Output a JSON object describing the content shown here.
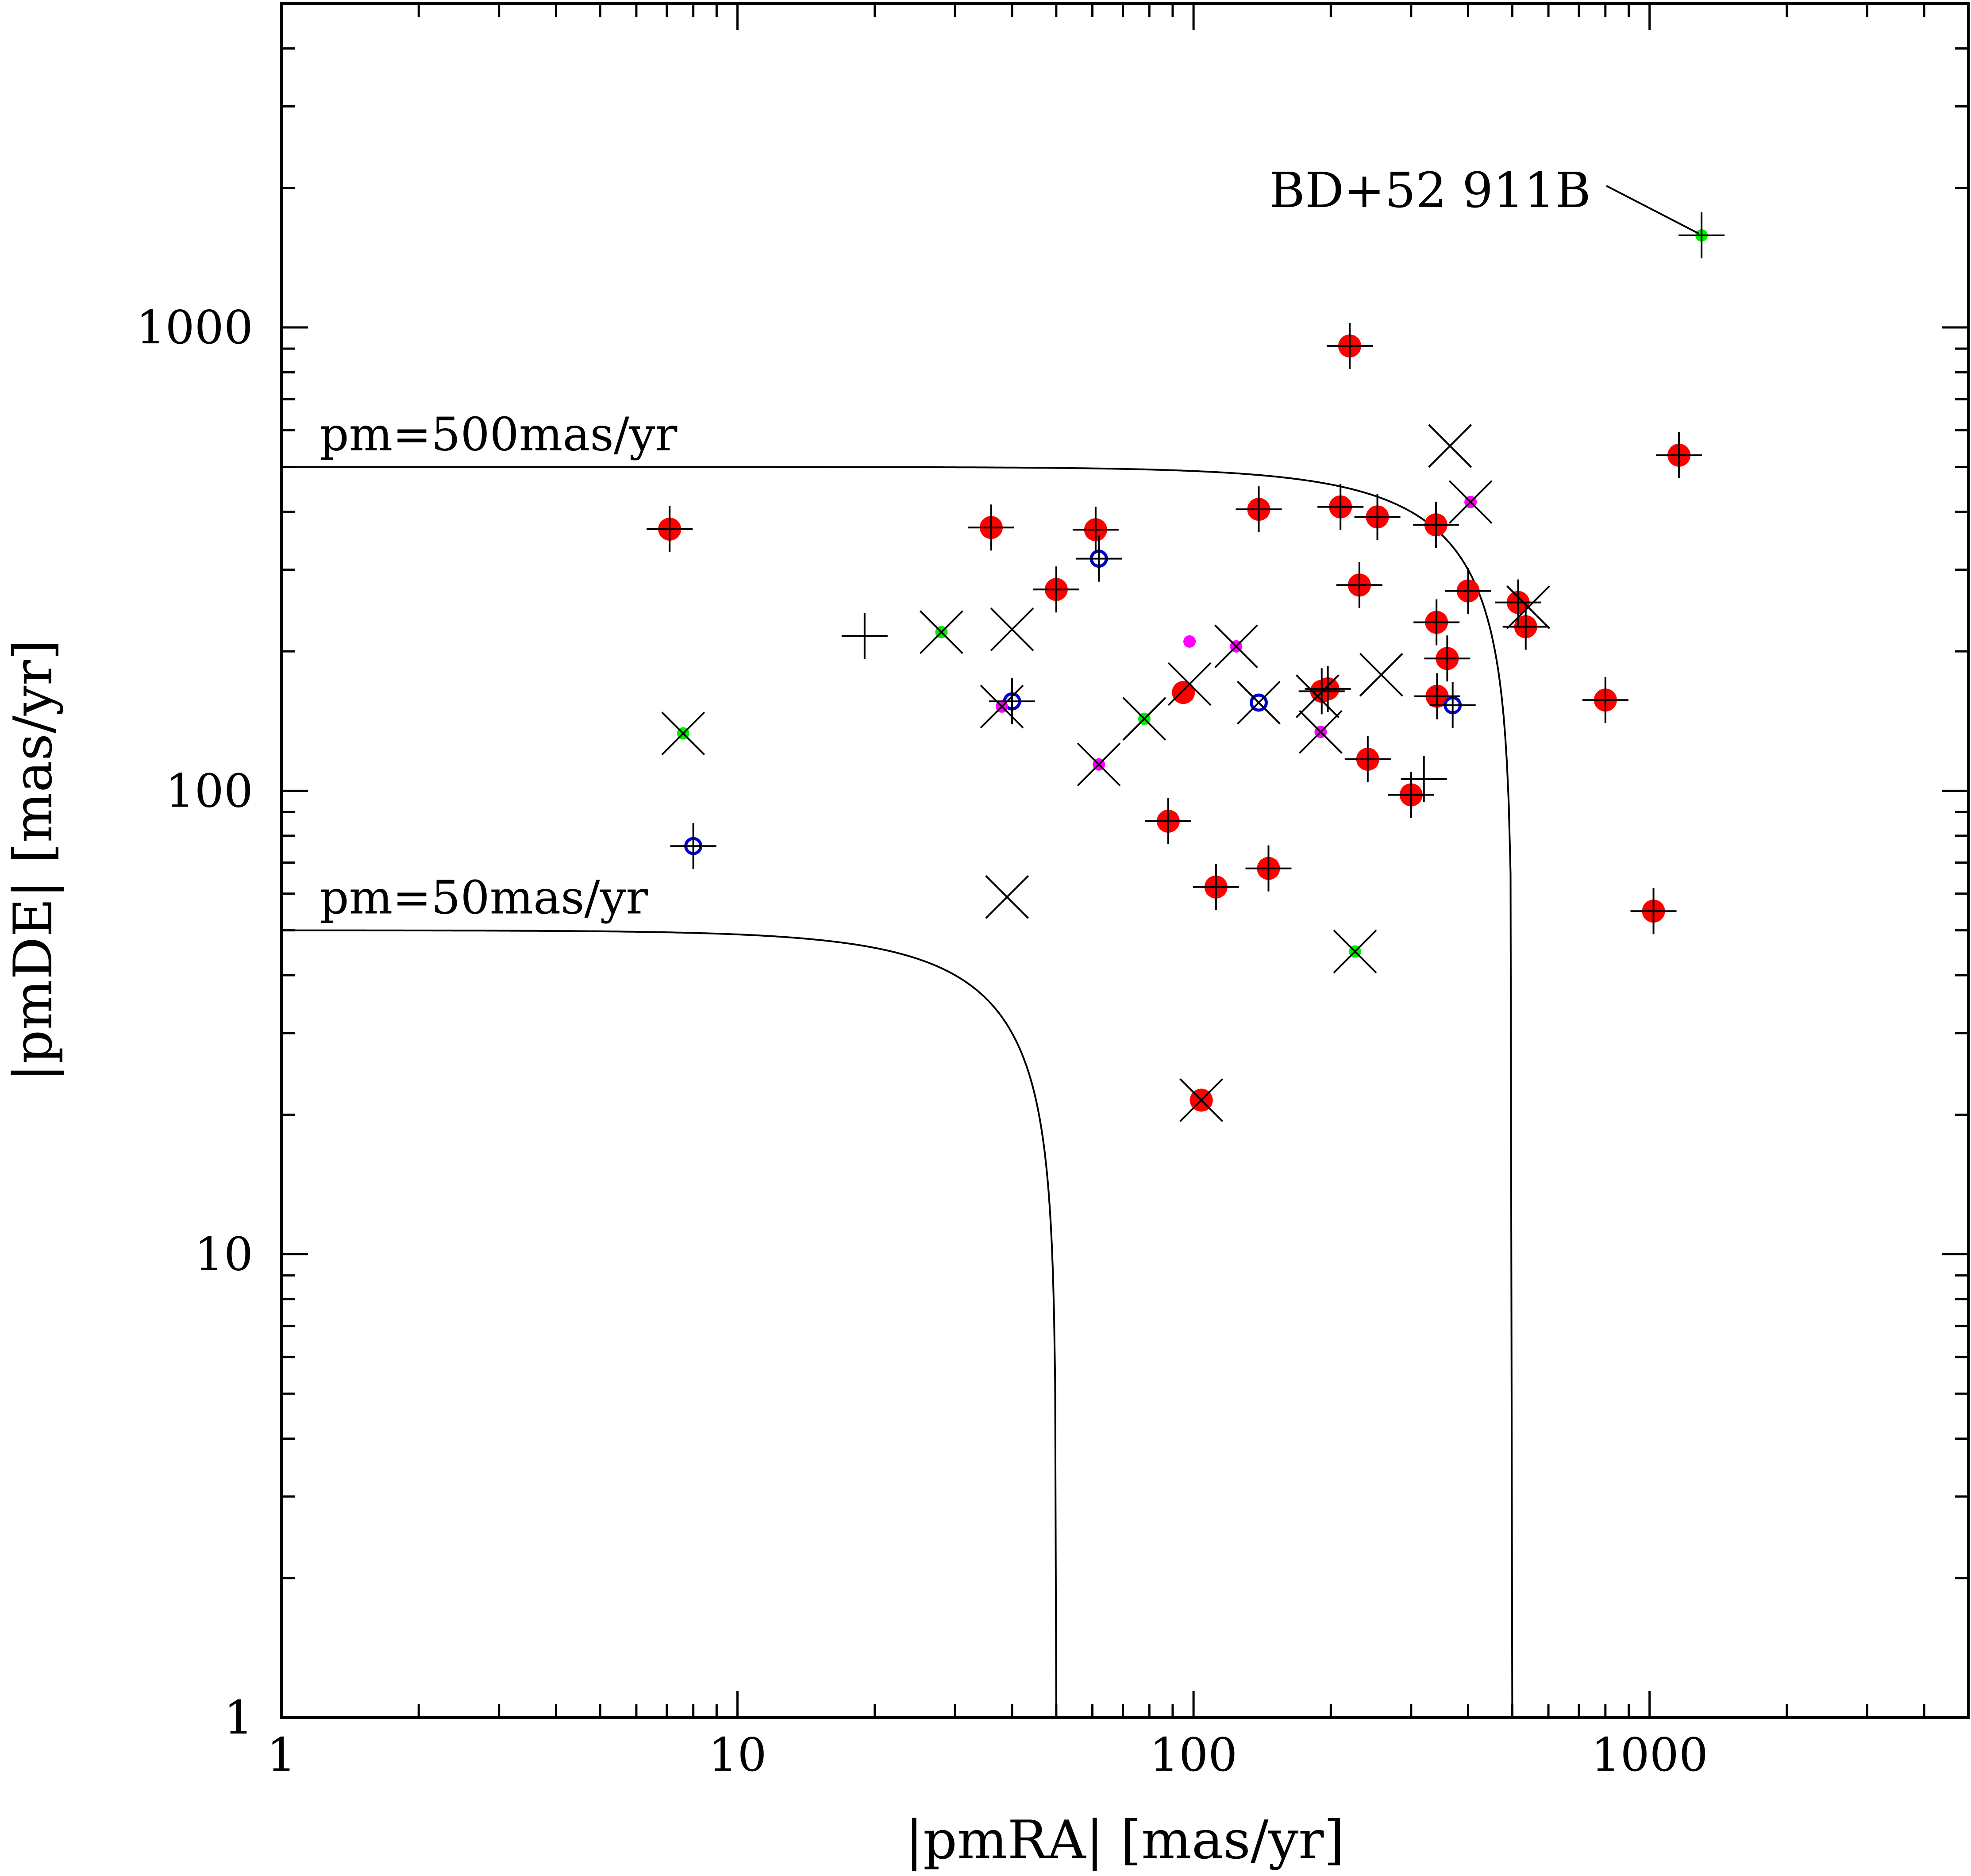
{
  "chart_data": {
    "type": "scatter",
    "title": "",
    "xlabel": "|pmRA| [mas/yr]",
    "ylabel": "|pmDE| [mas/yr]",
    "xscale": "log",
    "yscale": "log",
    "xlim": [
      1,
      5000
    ],
    "ylim": [
      1,
      5000
    ],
    "xticks": [
      1,
      10,
      100,
      1000
    ],
    "yticks": [
      1,
      10,
      100,
      1000
    ],
    "xtick_labels": [
      "1",
      "10",
      "100",
      "1000"
    ],
    "ytick_labels": [
      "1",
      "10",
      "100",
      "1000"
    ],
    "curves": [
      {
        "name": "pm=500mas/yr",
        "radius": 500
      },
      {
        "name": "pm=50mas/yr",
        "radius": 50
      }
    ],
    "annotations": [
      {
        "text": "BD+52 911B",
        "x": 1300,
        "y": 1580
      }
    ],
    "colors": {
      "red": "#ff0000",
      "blue": "#0000cc",
      "green": "#00ee00",
      "magenta": "#ff00ff",
      "black": "#000000"
    },
    "series": [
      {
        "name": "red filled circles",
        "marker": "filled-circle",
        "color": "#ff0000",
        "points": [
          [
            7.1,
            367
          ],
          [
            36,
            370
          ],
          [
            50,
            272
          ],
          [
            61,
            366
          ],
          [
            95,
            163
          ],
          [
            88,
            86
          ],
          [
            112,
            62
          ],
          [
            146,
            68
          ],
          [
            139,
            405
          ],
          [
            104,
            21.5
          ],
          [
            191,
            164
          ],
          [
            197,
            166
          ],
          [
            210,
            410
          ],
          [
            220,
            912
          ],
          [
            231,
            278
          ],
          [
            253,
            390
          ],
          [
            241,
            117
          ],
          [
            300,
            98
          ],
          [
            340,
            375
          ],
          [
            341,
            231
          ],
          [
            342,
            160
          ],
          [
            360,
            193
          ],
          [
            400,
            270
          ],
          [
            515,
            255
          ],
          [
            535,
            226
          ],
          [
            800,
            157
          ],
          [
            1020,
            55
          ],
          [
            1160,
            530
          ]
        ]
      },
      {
        "name": "blue open circles",
        "marker": "open-circle",
        "color": "#0000cc",
        "points": [
          [
            8.0,
            76
          ],
          [
            40,
            156
          ],
          [
            62,
            317
          ],
          [
            139,
            155
          ],
          [
            370,
            153
          ]
        ]
      },
      {
        "name": "green points",
        "marker": "filled-dot",
        "color": "#00ee00",
        "points": [
          [
            7.6,
            133
          ],
          [
            28,
            220
          ],
          [
            78,
            143
          ],
          [
            226,
            45
          ],
          [
            1300,
            1580
          ]
        ]
      },
      {
        "name": "magenta points",
        "marker": "filled-dot",
        "color": "#ff00ff",
        "points": [
          [
            38,
            152
          ],
          [
            62,
            114
          ],
          [
            98,
            210
          ],
          [
            124,
            205
          ],
          [
            190,
            134
          ],
          [
            405,
            420
          ]
        ]
      },
      {
        "name": "plus markers",
        "marker": "plus",
        "color": "#000000",
        "points": [
          [
            7.1,
            367
          ],
          [
            8.0,
            76
          ],
          [
            19,
            216
          ],
          [
            36,
            370
          ],
          [
            40,
            156
          ],
          [
            50,
            272
          ],
          [
            61,
            366
          ],
          [
            62,
            317
          ],
          [
            88,
            86
          ],
          [
            112,
            62
          ],
          [
            139,
            405
          ],
          [
            146,
            68
          ],
          [
            191,
            164
          ],
          [
            197,
            166
          ],
          [
            210,
            410
          ],
          [
            220,
            912
          ],
          [
            231,
            278
          ],
          [
            241,
            117
          ],
          [
            253,
            390
          ],
          [
            300,
            98
          ],
          [
            320,
            106
          ],
          [
            340,
            375
          ],
          [
            341,
            231
          ],
          [
            342,
            160
          ],
          [
            360,
            193
          ],
          [
            370,
            153
          ],
          [
            400,
            270
          ],
          [
            515,
            255
          ],
          [
            535,
            226
          ],
          [
            800,
            157
          ],
          [
            1020,
            55
          ],
          [
            1160,
            530
          ],
          [
            1300,
            1580
          ]
        ]
      },
      {
        "name": "cross markers",
        "marker": "cross",
        "color": "#000000",
        "points": [
          [
            7.6,
            133
          ],
          [
            28,
            220
          ],
          [
            38,
            152
          ],
          [
            40,
            223
          ],
          [
            39,
            59
          ],
          [
            62,
            114
          ],
          [
            78,
            143
          ],
          [
            104,
            21.5
          ],
          [
            98,
            170
          ],
          [
            124,
            205
          ],
          [
            139,
            155
          ],
          [
            190,
            134
          ],
          [
            187,
            160
          ],
          [
            226,
            45
          ],
          [
            258,
            178
          ],
          [
            365,
            555
          ],
          [
            405,
            420
          ],
          [
            542,
            249
          ]
        ]
      }
    ]
  }
}
